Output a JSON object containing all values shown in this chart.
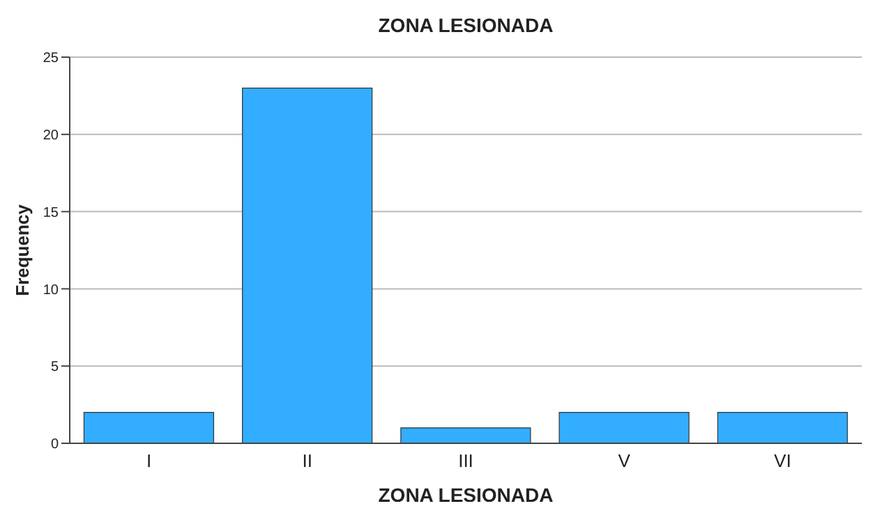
{
  "chart_data": {
    "type": "bar",
    "title": "ZONA LESIONADA",
    "xlabel": "ZONA LESIONADA",
    "ylabel": "Frequency",
    "categories": [
      "I",
      "II",
      "III",
      "V",
      "VI"
    ],
    "values": [
      2,
      23,
      1,
      2,
      2
    ],
    "color": "#33adff",
    "ylim": [
      0,
      25
    ],
    "yticks": [
      0,
      5,
      10,
      15,
      20,
      25
    ],
    "grid": "y"
  }
}
